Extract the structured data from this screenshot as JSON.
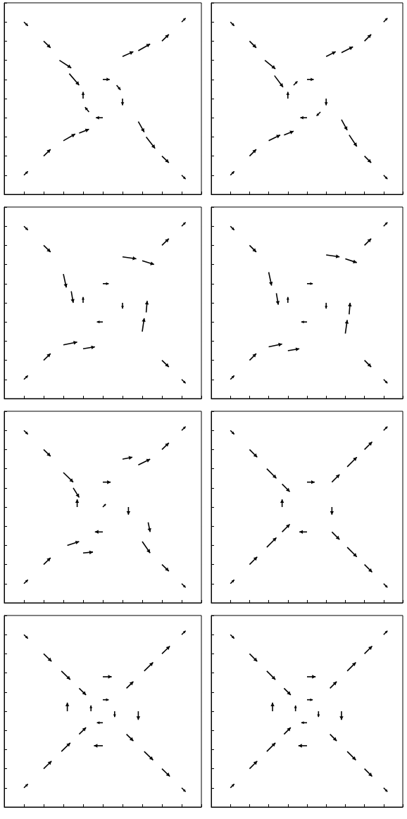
{
  "chart_data": [
    {
      "type": "quiver",
      "xlim": [
        0,
        10
      ],
      "ylim": [
        0,
        10
      ],
      "xticks": [
        0,
        1,
        2,
        3,
        4,
        5,
        6,
        7,
        8,
        9,
        10
      ],
      "yticks": [
        0,
        1,
        2,
        3,
        4,
        5,
        6,
        7,
        8,
        9,
        10
      ],
      "tick_labels": false,
      "color": "#000000",
      "vectors": [
        [
          1,
          9,
          0.2,
          -0.2
        ],
        [
          2,
          8,
          0.35,
          -0.35
        ],
        [
          2.8,
          7,
          0.6,
          -0.4
        ],
        [
          3.3,
          6.3,
          0.5,
          -0.6
        ],
        [
          9,
          9,
          0.2,
          0.2
        ],
        [
          8,
          8,
          0.35,
          0.35
        ],
        [
          6.8,
          7.5,
          0.6,
          0.35
        ],
        [
          6,
          7.2,
          0.55,
          0.25
        ],
        [
          1,
          1,
          0.2,
          0.2
        ],
        [
          2,
          2,
          0.35,
          0.35
        ],
        [
          3,
          2.8,
          0.6,
          0.35
        ],
        [
          3.8,
          3.2,
          0.5,
          0.2
        ],
        [
          9,
          1,
          0.2,
          -0.2
        ],
        [
          8,
          2,
          0.35,
          -0.35
        ],
        [
          7.2,
          3,
          0.45,
          -0.6
        ],
        [
          6.8,
          3.8,
          0.3,
          -0.55
        ],
        [
          5,
          6,
          0.35,
          0
        ],
        [
          6,
          5,
          0,
          -0.35
        ],
        [
          5,
          4,
          -0.35,
          0
        ],
        [
          4,
          5,
          0,
          0.35
        ],
        [
          4.3,
          4.3,
          -0.2,
          0.25
        ],
        [
          5.7,
          5.7,
          0.2,
          -0.25
        ]
      ]
    },
    {
      "type": "quiver",
      "xlim": [
        0,
        10
      ],
      "ylim": [
        0,
        10
      ],
      "xticks": [
        0,
        1,
        2,
        3,
        4,
        5,
        6,
        7,
        8,
        9,
        10
      ],
      "yticks": [
        0,
        1,
        2,
        3,
        4,
        5,
        6,
        7,
        8,
        9,
        10
      ],
      "tick_labels": false,
      "color": "#000000",
      "vectors": [
        [
          1,
          9,
          0.2,
          -0.2
        ],
        [
          2,
          8,
          0.35,
          -0.35
        ],
        [
          2.8,
          7,
          0.55,
          -0.45
        ],
        [
          3.3,
          6.2,
          0.45,
          -0.6
        ],
        [
          9,
          9,
          0.2,
          0.2
        ],
        [
          8,
          8,
          0.35,
          0.35
        ],
        [
          6.8,
          7.4,
          0.6,
          0.3
        ],
        [
          6,
          7.2,
          0.5,
          0.25
        ],
        [
          1,
          1,
          0.2,
          0.2
        ],
        [
          2,
          2,
          0.35,
          0.35
        ],
        [
          3,
          2.8,
          0.6,
          0.3
        ],
        [
          3.8,
          3.1,
          0.5,
          0.2
        ],
        [
          9,
          1,
          0.2,
          -0.2
        ],
        [
          8,
          2,
          0.35,
          -0.35
        ],
        [
          7.2,
          3.1,
          0.4,
          -0.6
        ],
        [
          6.8,
          3.9,
          0.3,
          -0.55
        ],
        [
          5,
          6,
          0.35,
          0
        ],
        [
          6,
          5,
          0,
          -0.35
        ],
        [
          5,
          4,
          -0.35,
          0
        ],
        [
          4,
          5,
          0,
          0.35
        ],
        [
          4.3,
          5.7,
          0.2,
          0.2
        ],
        [
          5.7,
          4.3,
          -0.2,
          -0.2
        ]
      ]
    },
    {
      "type": "quiver",
      "xlim": [
        0,
        10
      ],
      "ylim": [
        0,
        10
      ],
      "xticks": [
        0,
        1,
        2,
        3,
        4,
        5,
        6,
        7,
        8,
        9,
        10
      ],
      "yticks": [
        0,
        1,
        2,
        3,
        4,
        5,
        6,
        7,
        8,
        9,
        10
      ],
      "tick_labels": false,
      "color": "#000000",
      "vectors": [
        [
          1,
          9,
          0.2,
          -0.2
        ],
        [
          2,
          8,
          0.35,
          -0.35
        ],
        [
          3,
          6.5,
          0.15,
          -0.7
        ],
        [
          3.4,
          5.6,
          0.1,
          -0.6
        ],
        [
          9,
          9,
          0.2,
          0.2
        ],
        [
          8,
          8,
          0.35,
          0.35
        ],
        [
          6,
          7.4,
          0.7,
          -0.1
        ],
        [
          7,
          7.2,
          0.6,
          -0.2
        ],
        [
          1,
          1,
          0.2,
          0.2
        ],
        [
          2,
          2,
          0.35,
          0.35
        ],
        [
          3,
          2.8,
          0.7,
          0.15
        ],
        [
          4,
          2.6,
          0.6,
          0.1
        ],
        [
          9,
          1,
          0.2,
          -0.2
        ],
        [
          8,
          2,
          0.35,
          -0.35
        ],
        [
          7,
          3.5,
          0.1,
          0.7
        ],
        [
          7.2,
          4.5,
          0.05,
          0.6
        ],
        [
          5,
          6,
          0.3,
          0
        ],
        [
          6,
          5,
          0,
          -0.3
        ],
        [
          5,
          4,
          -0.3,
          0
        ],
        [
          4,
          5,
          0,
          0.3
        ]
      ]
    },
    {
      "type": "quiver",
      "xlim": [
        0,
        10
      ],
      "ylim": [
        0,
        10
      ],
      "xticks": [
        0,
        1,
        2,
        3,
        4,
        5,
        6,
        7,
        8,
        9,
        10
      ],
      "yticks": [
        0,
        1,
        2,
        3,
        4,
        5,
        6,
        7,
        8,
        9,
        10
      ],
      "tick_labels": false,
      "color": "#000000",
      "vectors": [
        [
          1,
          9,
          0.2,
          -0.2
        ],
        [
          2,
          8,
          0.35,
          -0.35
        ],
        [
          3,
          6.6,
          0.15,
          -0.7
        ],
        [
          3.4,
          5.5,
          0.1,
          -0.6
        ],
        [
          9,
          9,
          0.2,
          0.2
        ],
        [
          8,
          8,
          0.35,
          0.35
        ],
        [
          6,
          7.5,
          0.7,
          -0.1
        ],
        [
          7,
          7.3,
          0.6,
          -0.2
        ],
        [
          1,
          1,
          0.2,
          0.2
        ],
        [
          2,
          2,
          0.35,
          0.35
        ],
        [
          3,
          2.7,
          0.7,
          0.15
        ],
        [
          4,
          2.5,
          0.6,
          0.1
        ],
        [
          9,
          1,
          0.2,
          -0.2
        ],
        [
          8,
          2,
          0.35,
          -0.35
        ],
        [
          7,
          3.4,
          0.1,
          0.7
        ],
        [
          7.2,
          4.4,
          0.05,
          0.6
        ],
        [
          5,
          6,
          0.3,
          0
        ],
        [
          6,
          5,
          0,
          -0.3
        ],
        [
          5,
          4,
          -0.3,
          0
        ],
        [
          4,
          5,
          0,
          0.3
        ]
      ]
    },
    {
      "type": "quiver",
      "xlim": [
        0,
        10
      ],
      "ylim": [
        0,
        10
      ],
      "xticks": [
        0,
        1,
        2,
        3,
        4,
        5,
        6,
        7,
        8,
        9,
        10
      ],
      "yticks": [
        0,
        1,
        2,
        3,
        4,
        5,
        6,
        7,
        8,
        9,
        10
      ],
      "tick_labels": false,
      "color": "#000000",
      "vectors": [
        [
          1,
          9,
          0.2,
          -0.2
        ],
        [
          2,
          8,
          0.35,
          -0.35
        ],
        [
          3,
          6.8,
          0.5,
          -0.5
        ],
        [
          3.5,
          6,
          0.3,
          -0.5
        ],
        [
          9,
          9,
          0.2,
          0.2
        ],
        [
          8,
          8,
          0.35,
          0.35
        ],
        [
          6.8,
          7.2,
          0.6,
          0.3
        ],
        [
          6,
          7.5,
          0.5,
          0.1
        ],
        [
          1,
          1,
          0.2,
          0.2
        ],
        [
          2,
          2,
          0.35,
          0.35
        ],
        [
          3.2,
          3,
          0.6,
          0.2
        ],
        [
          4,
          2.6,
          0.5,
          0.05
        ],
        [
          9,
          1,
          0.2,
          -0.2
        ],
        [
          8,
          2,
          0.35,
          -0.35
        ],
        [
          7,
          3.2,
          0.4,
          -0.6
        ],
        [
          7.3,
          4.2,
          0.1,
          -0.5
        ],
        [
          5,
          6.3,
          0.4,
          0
        ],
        [
          6.3,
          5,
          0,
          -0.4
        ],
        [
          5,
          3.7,
          -0.4,
          0
        ],
        [
          3.7,
          5,
          0,
          0.4
        ],
        [
          5,
          5,
          0.15,
          0.15
        ]
      ]
    },
    {
      "type": "quiver",
      "xlim": [
        0,
        10
      ],
      "ylim": [
        0,
        10
      ],
      "xticks": [
        0,
        1,
        2,
        3,
        4,
        5,
        6,
        7,
        8,
        9,
        10
      ],
      "yticks": [
        0,
        1,
        2,
        3,
        4,
        5,
        6,
        7,
        8,
        9,
        10
      ],
      "tick_labels": false,
      "color": "#000000",
      "vectors": [
        [
          1,
          9,
          0.2,
          -0.2
        ],
        [
          2,
          8,
          0.4,
          -0.4
        ],
        [
          2.9,
          7,
          0.5,
          -0.5
        ],
        [
          3.7,
          6.2,
          0.4,
          -0.4
        ],
        [
          9,
          9,
          0.2,
          0.2
        ],
        [
          8,
          8,
          0.4,
          0.4
        ],
        [
          7.1,
          7.1,
          0.5,
          0.5
        ],
        [
          6.3,
          6.3,
          0.4,
          0.4
        ],
        [
          1,
          1,
          0.2,
          0.2
        ],
        [
          2,
          2,
          0.4,
          0.4
        ],
        [
          2.9,
          2.9,
          0.5,
          0.5
        ],
        [
          3.7,
          3.7,
          0.4,
          0.4
        ],
        [
          9,
          1,
          0.2,
          -0.2
        ],
        [
          8,
          2,
          0.4,
          -0.4
        ],
        [
          7.1,
          2.9,
          0.5,
          -0.5
        ],
        [
          6.3,
          3.7,
          0.4,
          -0.4
        ],
        [
          5,
          6.3,
          0.4,
          0
        ],
        [
          6.3,
          5,
          0,
          -0.4
        ],
        [
          5,
          3.7,
          -0.4,
          0
        ],
        [
          3.7,
          5,
          0,
          0.4
        ]
      ]
    },
    {
      "type": "quiver",
      "xlim": [
        0,
        10
      ],
      "ylim": [
        0,
        10
      ],
      "xticks": [
        0,
        1,
        2,
        3,
        4,
        5,
        6,
        7,
        8,
        9,
        10
      ],
      "yticks": [
        0,
        1,
        2,
        3,
        4,
        5,
        6,
        7,
        8,
        9,
        10
      ],
      "tick_labels": false,
      "color": "#000000",
      "vectors": [
        [
          1,
          9,
          0.2,
          -0.2
        ],
        [
          2,
          8,
          0.4,
          -0.4
        ],
        [
          2.9,
          7.1,
          0.45,
          -0.45
        ],
        [
          3.8,
          6.2,
          0.35,
          -0.35
        ],
        [
          9,
          9,
          0.2,
          0.2
        ],
        [
          8,
          8,
          0.4,
          0.4
        ],
        [
          7.1,
          7.1,
          0.45,
          0.45
        ],
        [
          6.2,
          6.2,
          0.35,
          0.35
        ],
        [
          1,
          1,
          0.2,
          0.2
        ],
        [
          2,
          2,
          0.4,
          0.4
        ],
        [
          2.9,
          2.9,
          0.45,
          0.45
        ],
        [
          3.8,
          3.8,
          0.35,
          0.35
        ],
        [
          9,
          1,
          0.2,
          -0.2
        ],
        [
          8,
          2,
          0.4,
          -0.4
        ],
        [
          7.1,
          2.9,
          0.45,
          -0.45
        ],
        [
          6.2,
          3.8,
          0.35,
          -0.35
        ],
        [
          5,
          6.8,
          0.45,
          0
        ],
        [
          6.8,
          5,
          0,
          -0.45
        ],
        [
          5,
          3.2,
          -0.45,
          0
        ],
        [
          3.2,
          5,
          0,
          0.45
        ],
        [
          5,
          5.6,
          0.3,
          0
        ],
        [
          5.6,
          5,
          0,
          -0.3
        ],
        [
          5,
          4.4,
          -0.3,
          0
        ],
        [
          4.4,
          5,
          0,
          0.3
        ]
      ]
    },
    {
      "type": "quiver",
      "xlim": [
        0,
        10
      ],
      "ylim": [
        0,
        10
      ],
      "xticks": [
        0,
        1,
        2,
        3,
        4,
        5,
        6,
        7,
        8,
        9,
        10
      ],
      "yticks": [
        0,
        1,
        2,
        3,
        4,
        5,
        6,
        7,
        8,
        9,
        10
      ],
      "tick_labels": false,
      "color": "#000000",
      "vectors": [
        [
          1,
          9,
          0.2,
          -0.2
        ],
        [
          2,
          8,
          0.4,
          -0.4
        ],
        [
          2.9,
          7.1,
          0.45,
          -0.45
        ],
        [
          3.8,
          6.2,
          0.35,
          -0.35
        ],
        [
          9,
          9,
          0.2,
          0.2
        ],
        [
          8,
          8,
          0.4,
          0.4
        ],
        [
          7.1,
          7.1,
          0.45,
          0.45
        ],
        [
          6.2,
          6.2,
          0.35,
          0.35
        ],
        [
          1,
          1,
          0.2,
          0.2
        ],
        [
          2,
          2,
          0.4,
          0.4
        ],
        [
          2.9,
          2.9,
          0.45,
          0.45
        ],
        [
          3.8,
          3.8,
          0.35,
          0.35
        ],
        [
          9,
          1,
          0.2,
          -0.2
        ],
        [
          8,
          2,
          0.4,
          -0.4
        ],
        [
          7.1,
          2.9,
          0.45,
          -0.45
        ],
        [
          6.2,
          3.8,
          0.35,
          -0.35
        ],
        [
          5,
          6.8,
          0.45,
          0
        ],
        [
          6.8,
          5,
          0,
          -0.45
        ],
        [
          5,
          3.2,
          -0.45,
          0
        ],
        [
          3.2,
          5,
          0,
          0.45
        ],
        [
          5,
          5.6,
          0.3,
          0
        ],
        [
          5.6,
          5,
          0,
          -0.3
        ],
        [
          5,
          4.4,
          -0.3,
          0
        ],
        [
          4.4,
          5,
          0,
          0.3
        ]
      ]
    }
  ]
}
